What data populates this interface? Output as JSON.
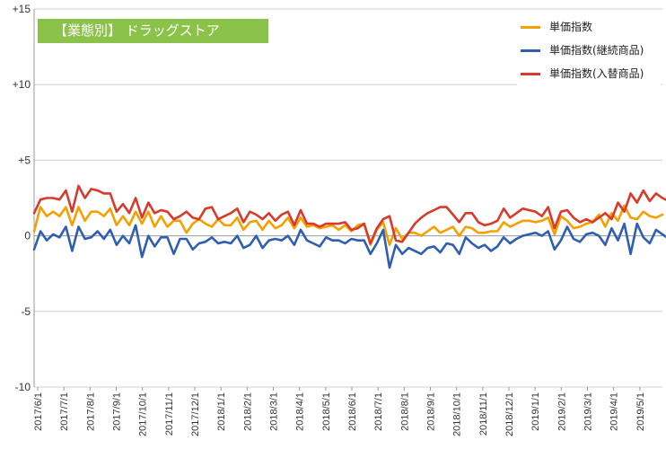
{
  "banner": {
    "text": "【業態別】 ドラッグストア",
    "color": "#8bc34a"
  },
  "chart_data": {
    "type": "line",
    "title": "",
    "xlabel": "",
    "ylabel": "",
    "ylim": [
      -10,
      15
    ],
    "yticks": [
      {
        "value": 15,
        "label": "+15"
      },
      {
        "value": 10,
        "label": "+10"
      },
      {
        "value": 5,
        "label": "+5"
      },
      {
        "value": 0,
        "label": "0"
      },
      {
        "value": -5,
        "label": "-5"
      },
      {
        "value": -10,
        "label": "-10"
      }
    ],
    "x_tick_labels": [
      "2017/6/1",
      "2017/7/1",
      "2017/8/1",
      "2017/9/1",
      "2017/10/1",
      "2017/11/1",
      "2017/12/1",
      "2018/1/1",
      "2018/2/1",
      "2018/3/1",
      "2018/4/1",
      "2018/5/1",
      "2018/6/1",
      "2018/7/1",
      "2018/8/1",
      "2018/9/1",
      "2018/10/1",
      "2018/11/1",
      "2018/12/1",
      "2019/1/1",
      "2019/2/1",
      "2019/3/1",
      "2019/4/1",
      "2019/5/1"
    ],
    "grid": true,
    "legend_position": "top-right",
    "series": [
      {
        "name": "単価指数",
        "color": "#f5a000",
        "values": [
          0.3,
          1.9,
          1.3,
          1.6,
          1.3,
          1.9,
          0.7,
          1.9,
          1.0,
          1.6,
          1.6,
          1.3,
          1.8,
          0.7,
          1.3,
          0.7,
          1.6,
          0.8,
          1.6,
          0.6,
          1.3,
          0.6,
          1.0,
          1.0,
          0.2,
          0.8,
          1.1,
          0.8,
          0.6,
          1.1,
          0.7,
          0.7,
          1.2,
          0.4,
          0.9,
          1.0,
          0.4,
          1.0,
          0.5,
          0.7,
          1.2,
          0.5,
          1.2,
          0.6,
          0.7,
          0.5,
          0.6,
          0.7,
          0.4,
          0.7,
          0.3,
          0.7,
          0.8,
          -0.6,
          0.4,
          0.9,
          -0.6,
          0.5,
          -0.2,
          0.2,
          0.2,
          0.0,
          0.3,
          0.6,
          0.2,
          0.4,
          0.6,
          0.0,
          0.6,
          0.5,
          0.2,
          0.2,
          0.3,
          0.3,
          0.9,
          0.6,
          0.8,
          1.0,
          1.0,
          0.9,
          1.0,
          1.2,
          0.1,
          1.3,
          1.0,
          0.5,
          0.6,
          0.8,
          0.9,
          1.4,
          0.6,
          1.5,
          1.0,
          2.0,
          1.2,
          1.1,
          1.6,
          1.3,
          1.2,
          1.4
        ]
      },
      {
        "name": "単価指数(継続商品)",
        "color": "#2f5fb3",
        "values": [
          -0.9,
          0.3,
          -0.3,
          0.1,
          -0.1,
          0.6,
          -1.0,
          0.6,
          -0.2,
          -0.1,
          0.3,
          -0.2,
          0.4,
          -0.6,
          0.0,
          -0.5,
          0.7,
          -1.4,
          0.0,
          -0.7,
          -0.1,
          -0.1,
          -1.2,
          -0.2,
          -0.2,
          -0.9,
          -0.5,
          -0.4,
          -0.1,
          -0.5,
          -0.4,
          -0.5,
          0.0,
          -0.8,
          -0.6,
          0.0,
          -0.8,
          -0.3,
          -0.2,
          -0.3,
          0.0,
          -0.6,
          0.4,
          -0.3,
          -0.5,
          -0.7,
          -0.1,
          -0.3,
          -0.3,
          -0.5,
          -0.2,
          -0.3,
          -0.3,
          -1.2,
          -0.5,
          0.4,
          -2.1,
          -0.6,
          -1.2,
          -0.8,
          -1.0,
          -1.2,
          -0.8,
          -0.7,
          -1.1,
          -0.5,
          -0.6,
          -1.2,
          -0.1,
          -0.5,
          -0.8,
          -0.6,
          -1.0,
          -0.7,
          -0.1,
          -0.5,
          -0.2,
          0.0,
          0.1,
          0.2,
          0.0,
          0.3,
          -0.9,
          -0.3,
          0.6,
          -0.2,
          -0.4,
          0.1,
          0.2,
          0.0,
          -0.6,
          0.5,
          -0.3,
          0.8,
          -1.2,
          0.8,
          -0.1,
          -0.5,
          0.4,
          0.1,
          -0.2,
          0.1
        ]
      },
      {
        "name": "単価指数(入替商品)",
        "color": "#d93a2b",
        "values": [
          1.5,
          2.4,
          2.5,
          2.5,
          2.4,
          3.0,
          1.6,
          3.3,
          2.5,
          3.1,
          3.0,
          2.8,
          2.8,
          1.6,
          2.1,
          1.5,
          2.5,
          1.2,
          2.2,
          1.5,
          1.7,
          1.6,
          1.1,
          1.3,
          1.6,
          1.2,
          1.1,
          1.8,
          1.9,
          1.1,
          1.3,
          1.5,
          1.8,
          0.9,
          1.6,
          1.4,
          1.1,
          1.5,
          1.0,
          1.4,
          1.6,
          0.7,
          1.7,
          0.8,
          0.8,
          0.6,
          0.8,
          0.8,
          0.8,
          0.9,
          0.4,
          0.5,
          0.8,
          -0.5,
          0.5,
          1.1,
          1.3,
          -0.3,
          -0.4,
          0.2,
          0.8,
          1.2,
          1.5,
          1.7,
          1.9,
          1.9,
          1.4,
          0.9,
          1.5,
          1.5,
          0.9,
          0.7,
          0.8,
          1.0,
          1.8,
          1.2,
          1.5,
          1.8,
          1.7,
          1.6,
          1.3,
          1.9,
          0.5,
          1.6,
          1.7,
          1.2,
          0.9,
          1.1,
          0.9,
          1.2,
          1.5,
          1.1,
          2.2,
          1.6,
          2.8,
          2.2,
          3.0,
          2.3,
          2.8,
          2.5,
          2.3,
          2.6
        ]
      }
    ]
  }
}
